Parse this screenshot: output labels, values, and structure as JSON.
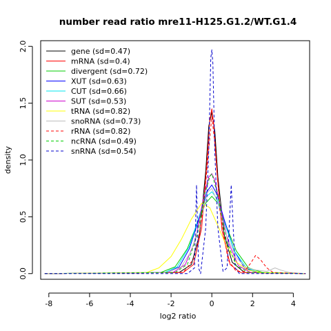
{
  "chart_data": {
    "type": "line",
    "title": "number read ratio mre11-H125.G1.2/WT.G1.4",
    "xlabel": "log2 ratio",
    "ylabel": "density",
    "xlim": [
      -8.4,
      4.8
    ],
    "ylim": [
      -0.05,
      2.05
    ],
    "x_ticks": [
      -8,
      -6,
      -4,
      -2,
      0,
      2,
      4
    ],
    "x_tick_labels": [
      "-8",
      "-6",
      "-4",
      "-2",
      "0",
      "2",
      "4"
    ],
    "y_ticks": [
      0.0,
      0.5,
      1.0,
      1.5,
      2.0
    ],
    "y_tick_labels": [
      "0.0",
      "0.5",
      "1.0",
      "1.5",
      "2.0"
    ],
    "grid": false,
    "legend_position": "top-left",
    "series": [
      {
        "name": "gene (sd=0.47)",
        "color": "#000000",
        "dash": false,
        "x": [
          -8.2,
          -1.6,
          -1.0,
          -0.6,
          -0.3,
          -0.15,
          0,
          0.15,
          0.3,
          0.6,
          1.0,
          1.6,
          4.6
        ],
        "y": [
          0,
          0.01,
          0.08,
          0.35,
          0.9,
          1.3,
          1.42,
          1.25,
          0.85,
          0.35,
          0.1,
          0.01,
          0
        ]
      },
      {
        "name": "mRNA (sd=0.4)",
        "color": "#ff0000",
        "dash": false,
        "x": [
          -8.2,
          -1.4,
          -0.9,
          -0.5,
          -0.25,
          -0.1,
          0,
          0.1,
          0.25,
          0.5,
          0.9,
          1.4,
          4.6
        ],
        "y": [
          0,
          0.01,
          0.08,
          0.4,
          0.95,
          1.35,
          1.45,
          1.3,
          0.9,
          0.38,
          0.08,
          0.01,
          0
        ]
      },
      {
        "name": "divergent (sd=0.72)",
        "color": "#00cd00",
        "dash": false,
        "x": [
          -8.2,
          -2.5,
          -1.8,
          -1.2,
          -0.7,
          -0.3,
          0,
          0.3,
          0.7,
          1.2,
          1.8,
          2.5,
          4.6
        ],
        "y": [
          0,
          0.01,
          0.06,
          0.22,
          0.45,
          0.62,
          0.68,
          0.62,
          0.42,
          0.2,
          0.05,
          0.01,
          0
        ]
      },
      {
        "name": "XUT (sd=0.63)",
        "color": "#0000ff",
        "dash": false,
        "x": [
          -8.2,
          -2.2,
          -1.6,
          -1.1,
          -0.6,
          -0.25,
          0,
          0.25,
          0.6,
          1.1,
          1.6,
          2.2,
          4.6
        ],
        "y": [
          0,
          0.01,
          0.06,
          0.22,
          0.5,
          0.72,
          0.78,
          0.7,
          0.48,
          0.2,
          0.05,
          0.01,
          0
        ]
      },
      {
        "name": "CUT (sd=0.66)",
        "color": "#00e5ee",
        "dash": false,
        "x": [
          -8.2,
          -2.3,
          -1.7,
          -1.1,
          -0.6,
          -0.25,
          0,
          0.25,
          0.6,
          1.1,
          1.7,
          2.3,
          4.6
        ],
        "y": [
          0,
          0.01,
          0.06,
          0.24,
          0.52,
          0.68,
          0.72,
          0.66,
          0.46,
          0.2,
          0.05,
          0.01,
          0
        ]
      },
      {
        "name": "SUT (sd=0.53)",
        "color": "#cd00cd",
        "dash": false,
        "x": [
          -8.2,
          -1.9,
          -1.3,
          -0.8,
          -0.4,
          -0.15,
          0,
          0.15,
          0.4,
          0.8,
          1.3,
          1.9,
          4.6
        ],
        "y": [
          0,
          0.01,
          0.08,
          0.3,
          0.68,
          0.85,
          0.88,
          0.82,
          0.6,
          0.28,
          0.07,
          0.01,
          0
        ]
      },
      {
        "name": "tRNA (sd=0.82)",
        "color": "#ffff00",
        "dash": false,
        "x": [
          -8.2,
          -3.2,
          -2.6,
          -2.0,
          -1.5,
          -1.0,
          -0.5,
          -0.1,
          0.3,
          0.7,
          1.2,
          1.8,
          2.4,
          4.6
        ],
        "y": [
          0,
          0.01,
          0.05,
          0.15,
          0.3,
          0.48,
          0.62,
          0.58,
          0.42,
          0.25,
          0.1,
          0.03,
          0.01,
          0
        ]
      },
      {
        "name": "snoRNA (sd=0.73)",
        "color": "#bebebe",
        "dash": false,
        "x": [
          -8.2,
          -2.2,
          -1.5,
          -1.0,
          -0.5,
          -0.2,
          0,
          0.3,
          0.7,
          1.2,
          1.7,
          2.2,
          2.7,
          3.1,
          3.4,
          3.8,
          4.6
        ],
        "y": [
          0,
          0.01,
          0.06,
          0.2,
          0.5,
          0.72,
          0.75,
          0.62,
          0.35,
          0.14,
          0.05,
          0.03,
          0.02,
          0.05,
          0.03,
          0.01,
          0
        ]
      },
      {
        "name": "rRNA (sd=0.82)",
        "color": "#ff0000",
        "dash": true,
        "x": [
          -8.2,
          -1.4,
          -0.8,
          -0.4,
          -0.15,
          0,
          0.15,
          0.4,
          0.8,
          1.2,
          1.6,
          1.9,
          2.15,
          2.4,
          2.7,
          3.0,
          4.6
        ],
        "y": [
          0,
          0.01,
          0.15,
          0.6,
          1.1,
          1.38,
          1.15,
          0.55,
          0.12,
          0.02,
          0.02,
          0.09,
          0.16,
          0.12,
          0.05,
          0.01,
          0
        ]
      },
      {
        "name": "ncRNA (sd=0.49)",
        "color": "#00cd00",
        "dash": true,
        "x": [
          -8.2,
          -1.8,
          -1.2,
          -0.7,
          -0.35,
          -0.1,
          0,
          0.1,
          0.35,
          0.7,
          1.2,
          1.8,
          4.6
        ],
        "y": [
          0,
          0.01,
          0.08,
          0.35,
          0.7,
          0.85,
          0.88,
          0.82,
          0.65,
          0.3,
          0.07,
          0.01,
          0
        ]
      },
      {
        "name": "snRNA (sd=0.54)",
        "color": "#0000cd",
        "dash": true,
        "x": [
          -8.2,
          -1.2,
          -0.85,
          -0.75,
          -0.65,
          -0.55,
          -0.3,
          -0.15,
          -0.05,
          0,
          0.05,
          0.15,
          0.3,
          0.55,
          0.75,
          0.85,
          0.95,
          1.05,
          1.15,
          1.35,
          4.6
        ],
        "y": [
          0,
          0,
          0.05,
          0.78,
          0.05,
          0,
          0.4,
          1.1,
          1.9,
          1.97,
          1.85,
          1.05,
          0.4,
          0.02,
          0.05,
          0.4,
          0.78,
          0.4,
          0.05,
          0,
          0
        ]
      }
    ]
  }
}
